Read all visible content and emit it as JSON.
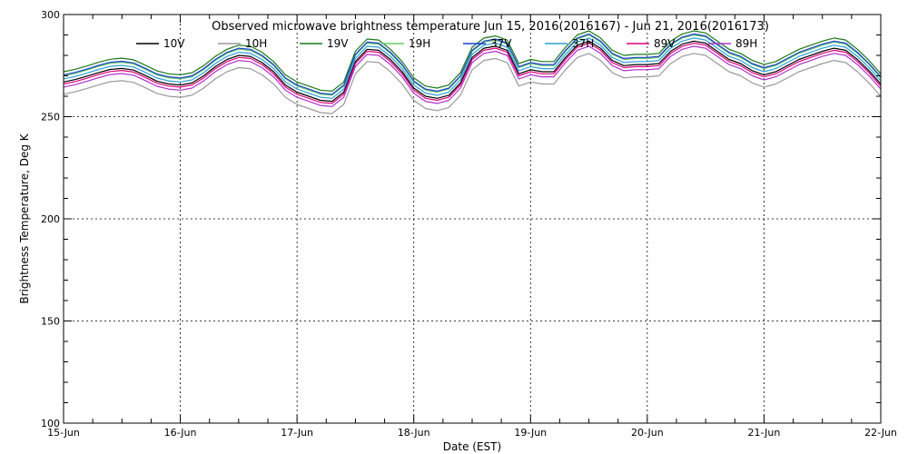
{
  "chart_data": {
    "type": "line",
    "title": "Observed microwave brightness temperature Jun 15, 2016(2016167) - Jun 21, 2016(2016173)",
    "xlabel": "Date (EST)",
    "ylabel": "Brightness Temperature, Deg K",
    "x_ticks": [
      "15-Jun",
      "16-Jun",
      "17-Jun",
      "18-Jun",
      "19-Jun",
      "20-Jun",
      "21-Jun",
      "22-Jun"
    ],
    "xlim": [
      0,
      7
    ],
    "ylim": [
      100,
      300
    ],
    "y_ticks": [
      100,
      150,
      200,
      250,
      300
    ],
    "grid": true,
    "legend_position": "top",
    "x": [
      0.0,
      0.1,
      0.2,
      0.3,
      0.4,
      0.5,
      0.6,
      0.7,
      0.8,
      0.9,
      1.0,
      1.1,
      1.2,
      1.3,
      1.4,
      1.5,
      1.6,
      1.7,
      1.8,
      1.9,
      2.0,
      2.1,
      2.2,
      2.3,
      2.4,
      2.5,
      2.6,
      2.7,
      2.8,
      2.9,
      3.0,
      3.1,
      3.2,
      3.3,
      3.4,
      3.5,
      3.6,
      3.7,
      3.8,
      3.9,
      4.0,
      4.1,
      4.2,
      4.3,
      4.4,
      4.5,
      4.6,
      4.7,
      4.8,
      4.9,
      5.0,
      5.1,
      5.2,
      5.3,
      5.4,
      5.5,
      5.6,
      5.7,
      5.8,
      5.9,
      6.0,
      6.1,
      6.2,
      6.3,
      6.4,
      6.5,
      6.6,
      6.7,
      6.8,
      6.9,
      7.0
    ],
    "series": [
      {
        "name": "10V",
        "color": "#000000",
        "values": [
          267.0,
          268.2,
          269.8,
          271.6,
          273.1,
          273.6,
          272.8,
          270.2,
          267.4,
          266.0,
          265.5,
          266.5,
          270.0,
          274.5,
          278.0,
          280.0,
          279.5,
          276.5,
          272.0,
          265.5,
          262.0,
          260.0,
          258.0,
          257.5,
          262.0,
          277.0,
          283.0,
          282.5,
          278.0,
          272.0,
          264.0,
          260.0,
          259.0,
          260.5,
          266.5,
          279.0,
          283.5,
          284.5,
          282.5,
          271.0,
          273.0,
          272.0,
          272.0,
          279.0,
          285.0,
          287.0,
          283.5,
          277.5,
          275.0,
          275.5,
          275.5,
          276.0,
          282.0,
          285.5,
          287.0,
          286.0,
          282.0,
          278.0,
          276.0,
          272.5,
          270.5,
          272.0,
          275.0,
          278.0,
          280.0,
          282.0,
          283.5,
          282.5,
          278.0,
          272.5,
          266.0
        ]
      },
      {
        "name": "10H",
        "color": "#9a9a9a",
        "values": [
          261.0,
          262.2,
          263.8,
          265.6,
          267.1,
          267.6,
          266.8,
          264.2,
          261.4,
          260.0,
          259.5,
          260.5,
          264.0,
          268.5,
          272.0,
          274.0,
          273.5,
          270.5,
          266.0,
          259.5,
          256.0,
          254.0,
          252.0,
          251.5,
          256.0,
          271.0,
          277.0,
          276.5,
          272.0,
          266.0,
          258.0,
          254.0,
          253.0,
          254.5,
          260.5,
          273.0,
          277.5,
          278.5,
          276.5,
          265.0,
          267.0,
          266.0,
          266.0,
          273.0,
          279.0,
          281.0,
          277.5,
          271.5,
          269.0,
          269.5,
          269.5,
          270.0,
          276.0,
          279.5,
          281.0,
          280.0,
          276.0,
          272.0,
          270.0,
          266.5,
          264.5,
          266.0,
          269.0,
          272.0,
          274.0,
          276.0,
          277.5,
          276.5,
          272.0,
          266.5,
          260.0
        ]
      },
      {
        "name": "19V",
        "color": "#1a7a1a",
        "values": [
          272.0,
          273.2,
          274.8,
          276.6,
          278.1,
          278.6,
          277.8,
          275.2,
          272.4,
          271.0,
          270.5,
          271.5,
          275.0,
          279.5,
          283.0,
          285.0,
          284.5,
          281.5,
          277.0,
          270.5,
          267.0,
          265.0,
          263.0,
          262.5,
          267.0,
          282.0,
          288.0,
          287.5,
          283.0,
          277.0,
          269.0,
          265.0,
          264.0,
          265.5,
          271.5,
          284.0,
          288.5,
          289.5,
          287.5,
          276.0,
          278.0,
          277.0,
          277.0,
          284.0,
          290.0,
          292.0,
          288.5,
          282.5,
          280.0,
          280.5,
          280.5,
          281.0,
          287.0,
          290.5,
          292.0,
          291.0,
          287.0,
          283.0,
          281.0,
          277.5,
          275.5,
          277.0,
          280.0,
          283.0,
          285.0,
          287.0,
          288.5,
          287.5,
          283.0,
          277.5,
          271.0
        ]
      },
      {
        "name": "19H",
        "color": "#66cc66",
        "values": [
          270.0,
          271.2,
          272.8,
          274.6,
          276.1,
          276.6,
          275.8,
          273.2,
          270.4,
          269.0,
          268.5,
          269.5,
          273.0,
          277.5,
          281.0,
          283.0,
          282.5,
          279.5,
          275.0,
          268.5,
          265.0,
          263.0,
          261.0,
          260.5,
          265.0,
          280.0,
          286.0,
          285.5,
          281.0,
          275.0,
          267.0,
          263.0,
          262.0,
          263.5,
          269.5,
          282.0,
          286.5,
          287.5,
          285.5,
          274.0,
          276.0,
          275.0,
          275.0,
          282.0,
          288.0,
          290.0,
          286.5,
          280.5,
          278.0,
          278.5,
          278.5,
          279.0,
          285.0,
          288.5,
          290.0,
          289.0,
          285.0,
          281.0,
          279.0,
          275.5,
          273.5,
          275.0,
          278.0,
          281.0,
          283.0,
          285.0,
          286.5,
          285.5,
          281.0,
          275.5,
          269.0
        ]
      },
      {
        "name": "37V",
        "color": "#1c3fd6",
        "values": [
          270.5,
          271.7,
          273.3,
          275.1,
          276.6,
          277.1,
          276.3,
          273.7,
          270.9,
          269.5,
          269.0,
          270.0,
          273.5,
          278.0,
          281.5,
          283.5,
          283.0,
          280.0,
          275.5,
          269.0,
          265.5,
          263.5,
          261.5,
          261.0,
          265.5,
          280.5,
          286.5,
          286.0,
          281.5,
          275.5,
          267.5,
          263.5,
          262.5,
          264.0,
          270.0,
          282.5,
          287.0,
          288.0,
          286.0,
          274.5,
          276.5,
          275.5,
          275.5,
          282.5,
          288.5,
          290.5,
          287.0,
          281.0,
          278.5,
          279.0,
          279.0,
          279.5,
          285.5,
          289.0,
          290.5,
          289.5,
          285.5,
          281.5,
          279.5,
          276.0,
          274.0,
          275.5,
          278.5,
          281.5,
          283.5,
          285.5,
          287.0,
          286.0,
          281.5,
          276.0,
          269.5
        ]
      },
      {
        "name": "37H",
        "color": "#2aa0d8",
        "values": [
          268.5,
          269.7,
          271.3,
          273.1,
          274.6,
          275.1,
          274.3,
          271.7,
          268.9,
          267.5,
          267.0,
          268.0,
          271.5,
          276.0,
          279.5,
          281.5,
          281.0,
          278.0,
          273.5,
          267.0,
          263.5,
          261.5,
          259.5,
          259.0,
          263.5,
          278.5,
          284.5,
          284.0,
          279.5,
          273.5,
          265.5,
          261.5,
          260.5,
          262.0,
          268.0,
          280.5,
          285.0,
          286.0,
          284.0,
          272.5,
          274.5,
          273.5,
          273.5,
          280.5,
          286.5,
          288.5,
          285.0,
          279.0,
          276.5,
          277.0,
          277.0,
          277.5,
          283.5,
          287.0,
          288.5,
          287.5,
          283.5,
          279.5,
          277.5,
          274.0,
          272.0,
          273.5,
          276.5,
          279.5,
          281.5,
          283.5,
          285.0,
          284.0,
          279.5,
          274.0,
          267.5
        ]
      },
      {
        "name": "89V",
        "color": "#e0007a",
        "values": [
          266.0,
          267.2,
          268.8,
          270.6,
          272.1,
          272.6,
          271.8,
          269.2,
          266.4,
          265.0,
          264.5,
          265.5,
          269.0,
          273.5,
          277.0,
          279.0,
          278.5,
          275.5,
          271.0,
          264.5,
          261.0,
          259.0,
          257.0,
          256.5,
          261.0,
          276.0,
          282.0,
          281.5,
          277.0,
          271.0,
          263.0,
          259.0,
          258.0,
          259.5,
          265.5,
          278.0,
          282.5,
          283.5,
          281.5,
          270.0,
          272.0,
          271.0,
          271.0,
          278.0,
          284.0,
          286.0,
          282.5,
          276.5,
          274.0,
          274.5,
          274.5,
          275.0,
          281.0,
          284.5,
          286.0,
          285.0,
          281.0,
          277.0,
          275.0,
          271.5,
          269.5,
          271.0,
          274.0,
          277.0,
          279.0,
          281.0,
          282.5,
          281.5,
          277.0,
          271.5,
          265.0
        ]
      },
      {
        "name": "89H",
        "color": "#b030d0",
        "values": [
          264.5,
          265.7,
          267.3,
          269.1,
          270.6,
          271.1,
          270.3,
          267.7,
          264.9,
          263.5,
          263.0,
          264.0,
          267.5,
          272.0,
          275.5,
          277.5,
          277.0,
          274.0,
          269.5,
          263.0,
          259.5,
          257.5,
          255.5,
          255.0,
          259.5,
          274.5,
          280.5,
          280.0,
          275.5,
          269.5,
          261.5,
          257.5,
          256.5,
          258.0,
          264.0,
          276.5,
          281.0,
          282.0,
          280.0,
          268.5,
          270.5,
          269.5,
          269.5,
          276.5,
          282.5,
          284.5,
          281.0,
          275.0,
          272.5,
          273.0,
          273.0,
          273.5,
          279.5,
          283.0,
          284.5,
          283.5,
          279.5,
          275.5,
          273.5,
          270.0,
          268.0,
          269.5,
          272.5,
          275.5,
          277.5,
          279.5,
          281.0,
          280.0,
          275.5,
          270.0,
          263.5
        ]
      }
    ]
  }
}
